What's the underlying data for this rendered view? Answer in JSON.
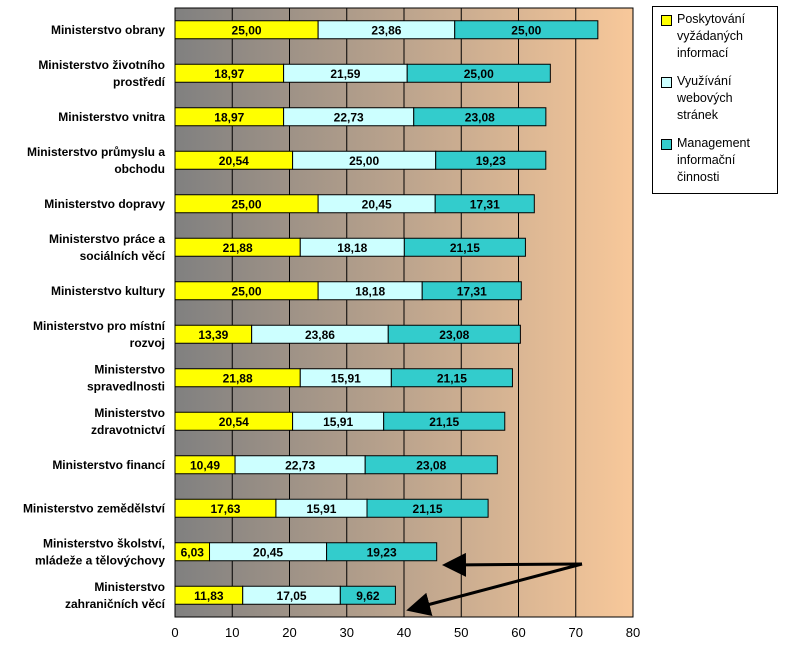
{
  "chart_data": {
    "type": "bar",
    "orientation": "horizontal",
    "stacked": true,
    "categories": [
      [
        "Ministerstvo obrany"
      ],
      [
        "Ministerstvo životního",
        "prostředí"
      ],
      [
        "Ministerstvo vnitra"
      ],
      [
        "Ministerstvo průmyslu a",
        "obchodu"
      ],
      [
        "Ministerstvo dopravy"
      ],
      [
        "Ministerstvo práce a",
        "sociálních věcí"
      ],
      [
        "Ministerstvo kultury"
      ],
      [
        "Ministerstvo pro místní",
        "rozvoj"
      ],
      [
        "Ministerstvo",
        "spravedlnosti"
      ],
      [
        "Ministerstvo",
        "zdravotnictví"
      ],
      [
        "Ministerstvo financí"
      ],
      [
        "Ministerstvo zemědělství"
      ],
      [
        "Ministerstvo školství,",
        "mládeže a tělovýchovy"
      ],
      [
        "Ministerstvo",
        "zahraničních věcí"
      ]
    ],
    "series": [
      {
        "name": "Poskytování vyžádaných informací",
        "legend_lines": [
          "Poskytování",
          "vyžádaných",
          "informací"
        ],
        "color": "#ffff00",
        "values": [
          25.0,
          18.97,
          18.97,
          20.54,
          25.0,
          21.88,
          25.0,
          13.39,
          21.88,
          20.54,
          10.49,
          17.63,
          6.03,
          11.83
        ],
        "labels": [
          "25,00",
          "18,97",
          "18,97",
          "20,54",
          "25,00",
          "21,88",
          "25,00",
          "13,39",
          "21,88",
          "20,54",
          "10,49",
          "17,63",
          "6,03",
          "11,83"
        ]
      },
      {
        "name": "Využívání webových stránek",
        "legend_lines": [
          "Využívání",
          "webových",
          "stránek"
        ],
        "color": "#ccffff",
        "values": [
          23.86,
          21.59,
          22.73,
          25.0,
          20.45,
          18.18,
          18.18,
          23.86,
          15.91,
          15.91,
          22.73,
          15.91,
          20.45,
          17.05
        ],
        "labels": [
          "23,86",
          "21,59",
          "22,73",
          "25,00",
          "20,45",
          "18,18",
          "18,18",
          "23,86",
          "15,91",
          "15,91",
          "22,73",
          "15,91",
          "20,45",
          "17,05"
        ]
      },
      {
        "name": "Management informační činnosti",
        "legend_lines": [
          "Management",
          "informační",
          "činnosti"
        ],
        "color": "#33cccc",
        "values": [
          25.0,
          25.0,
          23.08,
          19.23,
          17.31,
          21.15,
          17.31,
          23.08,
          21.15,
          21.15,
          23.08,
          21.15,
          19.23,
          9.62
        ],
        "labels": [
          "25,00",
          "25,00",
          "23,08",
          "19,23",
          "17,31",
          "21,15",
          "17,31",
          "23,08",
          "21,15",
          "21,15",
          "23,08",
          "21,15",
          "19,23",
          "9,62"
        ]
      }
    ],
    "x_ticks": [
      "0",
      "10",
      "20",
      "30",
      "40",
      "50",
      "60",
      "70",
      "80"
    ],
    "xlim": [
      0,
      80
    ],
    "grid": "vertical",
    "plot_background": "gradient gray to peach",
    "gradient_colors": [
      "#808080",
      "#f8c89a"
    ],
    "legend_position": "right",
    "annotations": "two black arrows pointing to the last two bars"
  }
}
